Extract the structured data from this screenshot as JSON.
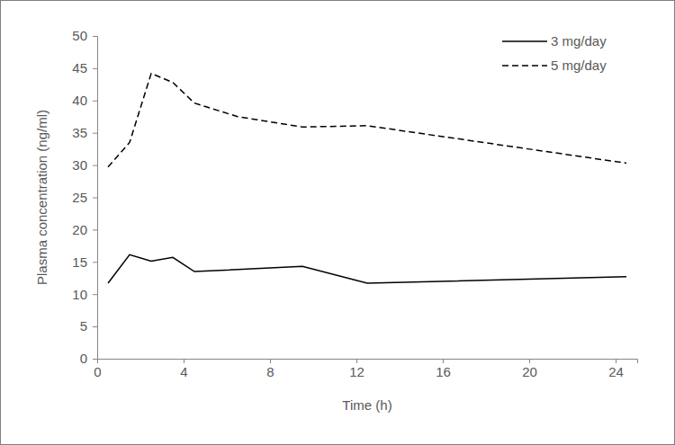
{
  "chart_data": {
    "type": "line",
    "x_label": "Time (h)",
    "y_label": "Plasma concentration (ng/ml)",
    "xlim": [
      0,
      25
    ],
    "xticks": [
      0,
      4,
      8,
      12,
      16,
      20,
      24
    ],
    "ylim": [
      0,
      50
    ],
    "yticks": [
      0,
      5,
      10,
      15,
      20,
      25,
      30,
      35,
      40,
      45,
      50
    ],
    "grid": false,
    "legend": "upper right",
    "series": [
      {
        "name": "3 mg/day",
        "color": "#000000",
        "line_style": "solid",
        "x": [
          0.5,
          1.5,
          2.5,
          3.5,
          4.5,
          9.5,
          12.5,
          24.5
        ],
        "values": [
          11.7,
          16.1,
          15.1,
          15.7,
          13.5,
          14.3,
          11.7,
          12.7
        ]
      },
      {
        "name": "5 mg/day",
        "color": "#000000",
        "line_style": "dashed",
        "x": [
          0.5,
          1.5,
          2.5,
          3.5,
          4.5,
          6.5,
          9.5,
          12.5,
          24.5
        ],
        "values": [
          29.7,
          33.5,
          44.2,
          42.8,
          39.6,
          37.5,
          35.9,
          36.1,
          30.3
        ]
      }
    ]
  }
}
